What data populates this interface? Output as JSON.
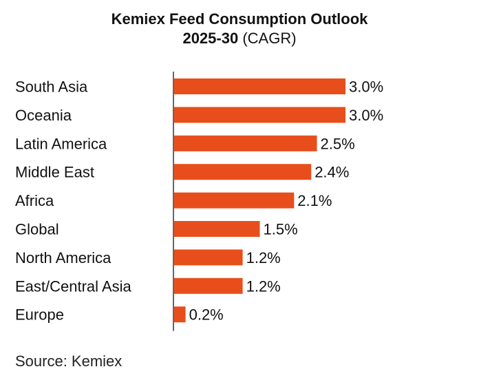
{
  "chart_data": {
    "type": "bar",
    "orientation": "horizontal",
    "title": "Kemiex Feed Consumption Outlook",
    "subtitle_bold": "2025-30",
    "subtitle_normal": "(CAGR)",
    "categories": [
      "South Asia",
      "Oceania",
      "Latin America",
      "Middle East",
      "Africa",
      "Global",
      "North America",
      "East/Central Asia",
      "Europe"
    ],
    "values": [
      3.0,
      3.0,
      2.5,
      2.4,
      2.1,
      1.5,
      1.2,
      1.2,
      0.2
    ],
    "labels": [
      "3.0%",
      "3.0%",
      "2.5%",
      "2.4%",
      "2.1%",
      "1.5%",
      "1.2%",
      "1.2%",
      "0.2%"
    ],
    "xlabel": "",
    "ylabel": "",
    "xlim": [
      0,
      3.0
    ],
    "grid": false,
    "bar_color": "#e84e1b",
    "source": "Source: Kemiex"
  }
}
